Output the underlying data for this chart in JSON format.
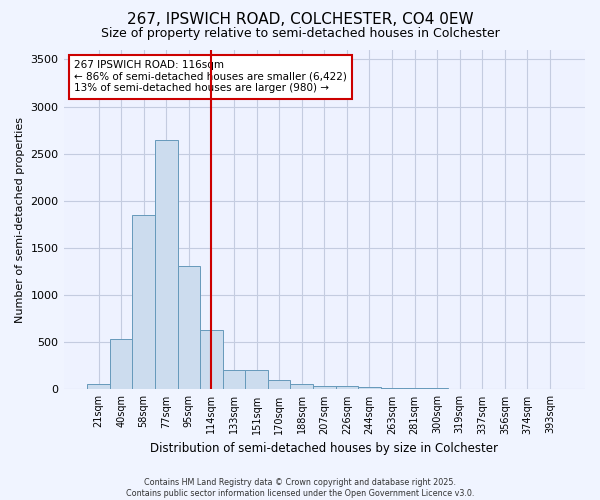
{
  "title_line1": "267, IPSWICH ROAD, COLCHESTER, CO4 0EW",
  "title_line2": "Size of property relative to semi-detached houses in Colchester",
  "xlabel": "Distribution of semi-detached houses by size in Colchester",
  "ylabel": "Number of semi-detached properties",
  "categories": [
    "21sqm",
    "40sqm",
    "58sqm",
    "77sqm",
    "95sqm",
    "114sqm",
    "133sqm",
    "151sqm",
    "170sqm",
    "188sqm",
    "207sqm",
    "226sqm",
    "244sqm",
    "263sqm",
    "281sqm",
    "300sqm",
    "319sqm",
    "337sqm",
    "356sqm",
    "374sqm",
    "393sqm"
  ],
  "values": [
    55,
    530,
    1850,
    2650,
    1310,
    635,
    210,
    210,
    95,
    60,
    40,
    35,
    25,
    20,
    15,
    10,
    8,
    5,
    4,
    3,
    3
  ],
  "bar_color": "#ccdcee",
  "bar_edge_color": "#6699bb",
  "vline_x": 5.0,
  "vline_color": "#cc0000",
  "annotation_title": "267 IPSWICH ROAD: 116sqm",
  "annotation_line2": "← 86% of semi-detached houses are smaller (6,422)",
  "annotation_line3": "13% of semi-detached houses are larger (980) →",
  "ylim": [
    0,
    3600
  ],
  "yticks": [
    0,
    500,
    1000,
    1500,
    2000,
    2500,
    3000,
    3500
  ],
  "footer_line1": "Contains HM Land Registry data © Crown copyright and database right 2025.",
  "footer_line2": "Contains public sector information licensed under the Open Government Licence v3.0.",
  "bg_color": "#f0f4ff",
  "plot_bg_color": "#eef2ff",
  "annotation_box_color": "#ffffff",
  "annotation_box_edge": "#cc0000",
  "title1_fontsize": 11,
  "title2_fontsize": 9
}
